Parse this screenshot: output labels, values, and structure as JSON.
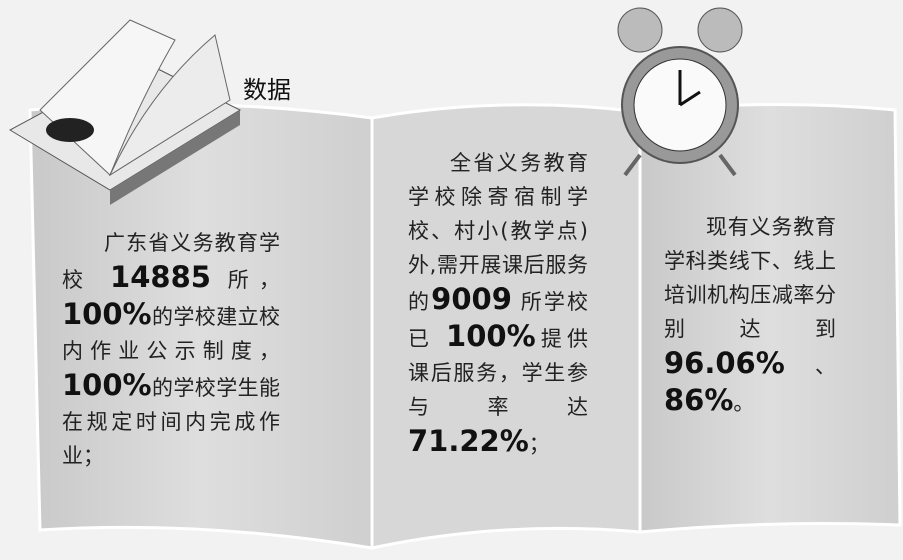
{
  "header": {
    "title": "数据"
  },
  "panels": [
    {
      "runs": [
        {
          "text": "广东省义务教育学校 ",
          "bold": false
        },
        {
          "text": "14885",
          "bold": true
        },
        {
          "text": " 所，",
          "bold": false
        },
        {
          "text": "100%",
          "bold": true
        },
        {
          "text": "的学校建立校内作业公示制度，",
          "bold": false
        },
        {
          "text": "100%",
          "bold": true
        },
        {
          "text": "的学校学生能在规定时间内完成作业；",
          "bold": false
        }
      ]
    },
    {
      "runs": [
        {
          "text": "全省义务教育学校除寄宿制学校、村小(教学点)外,需开展课后服务的",
          "bold": false
        },
        {
          "text": "9009",
          "bold": true
        },
        {
          "text": " 所学校已 ",
          "bold": false
        },
        {
          "text": "100%",
          "bold": true
        },
        {
          "text": "提供课后服务，学生参与率达",
          "bold": false
        },
        {
          "text": "71.22%",
          "bold": true
        },
        {
          "text": "；",
          "bold": false
        }
      ]
    },
    {
      "runs": [
        {
          "text": "现有义务教育学科类线下、线上培训机构压减率分别达到 ",
          "bold": false
        },
        {
          "text": "96.06%",
          "bold": true
        },
        {
          "text": "、",
          "bold": false
        },
        {
          "text": "86%",
          "bold": true
        },
        {
          "text": "。",
          "bold": false
        }
      ]
    }
  ]
}
